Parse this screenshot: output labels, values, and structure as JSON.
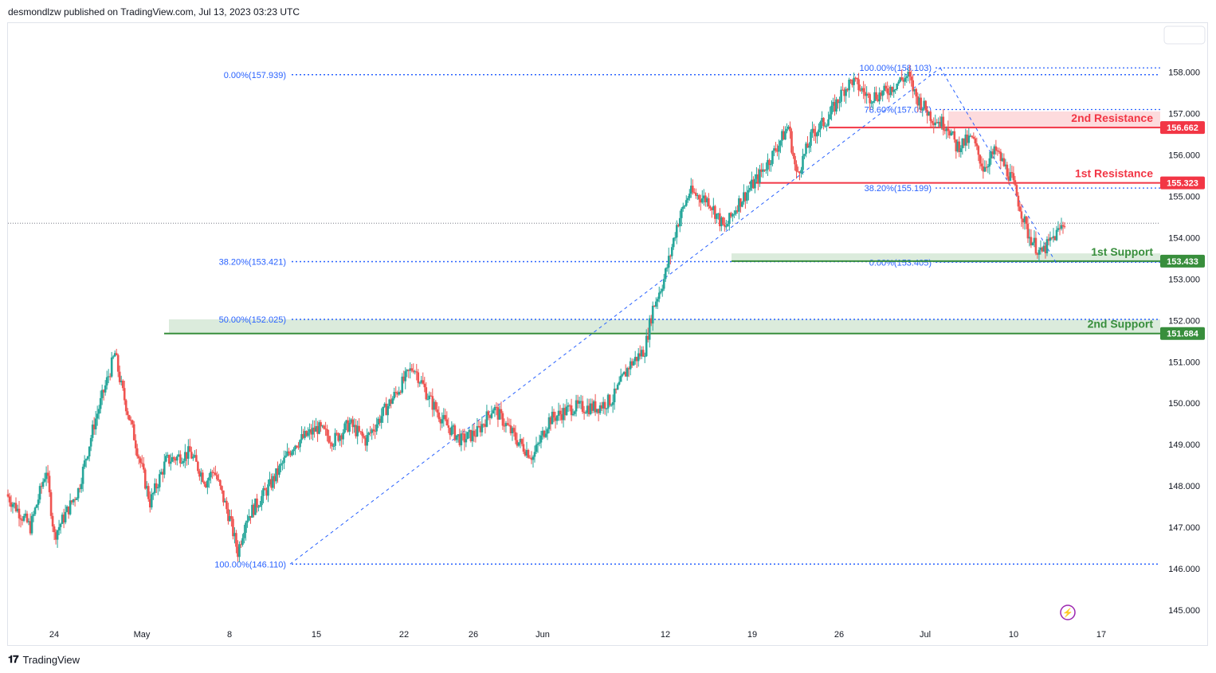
{
  "header": {
    "text": "desmondlzw published on TradingView.com, Jul 13, 2023 03:23 UTC"
  },
  "footer": {
    "brand": "TradingView"
  },
  "colors": {
    "up": "#26a69a",
    "down": "#ef5350",
    "resistance": "#f23645",
    "support": "#388e3c",
    "fib": "#2962ff"
  },
  "chart_data": {
    "type": "candlestick",
    "ylim": [
      144.6,
      158.6
    ],
    "y_ticks": [
      "158.000",
      "157.000",
      "156.000",
      "155.000",
      "154.000",
      "153.000",
      "152.000",
      "151.000",
      "150.000",
      "149.000",
      "148.000",
      "147.000",
      "146.000",
      "145.000"
    ],
    "x_ticks": [
      "24",
      "May",
      "8",
      "15",
      "22",
      "26",
      "Jun",
      "12",
      "19",
      "26",
      "Jul",
      "10",
      "17"
    ],
    "path_points": [
      [
        0,
        147.8
      ],
      [
        15,
        147.0
      ],
      [
        25,
        148.4
      ],
      [
        30,
        146.8
      ],
      [
        45,
        147.9
      ],
      [
        55,
        149.5
      ],
      [
        65,
        150.8
      ],
      [
        68,
        151.2
      ],
      [
        72,
        150.4
      ],
      [
        80,
        149.2
      ],
      [
        90,
        147.6
      ],
      [
        100,
        148.6
      ],
      [
        115,
        148.8
      ],
      [
        125,
        148.1
      ],
      [
        130,
        148.4
      ],
      [
        140,
        147.2
      ],
      [
        145,
        146.4
      ],
      [
        150,
        147.2
      ],
      [
        165,
        148.0
      ],
      [
        180,
        149.0
      ],
      [
        195,
        149.4
      ],
      [
        205,
        149.1
      ],
      [
        215,
        149.5
      ],
      [
        225,
        149.1
      ],
      [
        235,
        149.7
      ],
      [
        250,
        150.6
      ],
      [
        255,
        150.9
      ],
      [
        265,
        150.1
      ],
      [
        275,
        149.5
      ],
      [
        285,
        149.1
      ],
      [
        295,
        149.3
      ],
      [
        305,
        149.9
      ],
      [
        320,
        149.1
      ],
      [
        330,
        148.7
      ],
      [
        340,
        149.6
      ],
      [
        355,
        149.9
      ],
      [
        370,
        149.9
      ],
      [
        380,
        150.1
      ],
      [
        390,
        150.9
      ],
      [
        400,
        151.3
      ],
      [
        405,
        152.3
      ],
      [
        412,
        153.0
      ],
      [
        416,
        153.6
      ],
      [
        420,
        154.3
      ],
      [
        428,
        155.1
      ],
      [
        440,
        154.9
      ],
      [
        450,
        154.2
      ],
      [
        458,
        154.8
      ],
      [
        470,
        155.4
      ],
      [
        480,
        156.0
      ],
      [
        490,
        156.7
      ],
      [
        495,
        155.5
      ],
      [
        505,
        156.5
      ],
      [
        515,
        156.9
      ],
      [
        525,
        157.6
      ],
      [
        530,
        157.8
      ],
      [
        540,
        157.4
      ],
      [
        550,
        157.5
      ],
      [
        560,
        157.8
      ],
      [
        565,
        157.9
      ],
      [
        570,
        157.4
      ],
      [
        580,
        156.9
      ],
      [
        590,
        156.7
      ],
      [
        595,
        156.2
      ],
      [
        605,
        156.4
      ],
      [
        612,
        155.7
      ],
      [
        620,
        156.1
      ],
      [
        630,
        155.4
      ],
      [
        640,
        154.1
      ],
      [
        648,
        153.6
      ],
      [
        652,
        153.8
      ],
      [
        660,
        154.2
      ],
      [
        663,
        154.4
      ]
    ],
    "last_price": 154.35,
    "levels": [
      {
        "label": "2nd Resistance",
        "tag": "156.662",
        "value": 156.662,
        "kind": "resistance",
        "zone_top": 157.05
      },
      {
        "label": "1st Resistance",
        "tag": "155.323",
        "value": 155.323,
        "kind": "resistance",
        "zone_top": null
      },
      {
        "label": "1st Support",
        "tag": "153.433",
        "value": 153.433,
        "kind": "support",
        "zone_top": 153.62
      },
      {
        "label": "2nd Support",
        "tag": "151.684",
        "value": 151.684,
        "kind": "support",
        "zone_top": 152.025
      }
    ],
    "fib_left": [
      {
        "label": "0.00%(157.939)",
        "value": 157.939
      },
      {
        "label": "38.20%(153.421)",
        "value": 153.421
      },
      {
        "label": "50.00%(152.025)",
        "value": 152.025
      },
      {
        "label": "100.00%(146.110)",
        "value": 146.11
      }
    ],
    "fib_right": [
      {
        "label": "100.00%(158.103)",
        "value": 158.103
      },
      {
        "label": "78.60%(157.097)",
        "value": 157.097
      },
      {
        "label": "38.20%(155.199)",
        "value": 155.199
      },
      {
        "label": "0.00%(153.405)",
        "value": 153.405
      }
    ]
  }
}
